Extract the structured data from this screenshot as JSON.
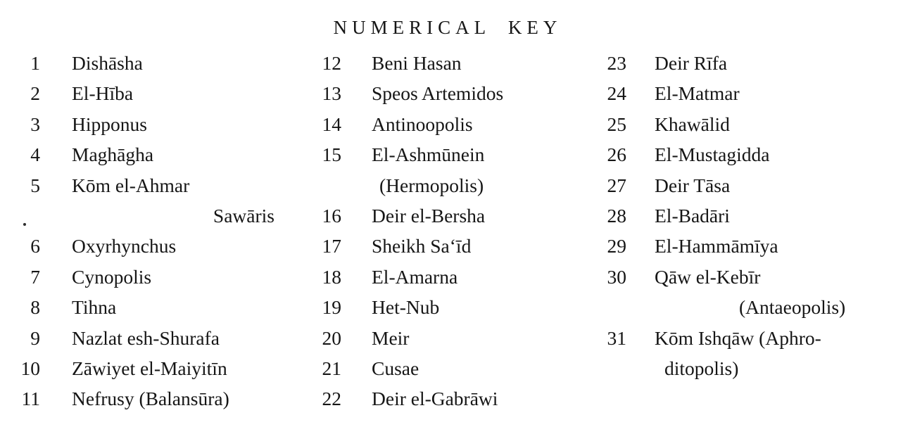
{
  "title": "NUMERICAL KEY",
  "columns": [
    {
      "entries": [
        {
          "num": "1",
          "name": "Dishāsha"
        },
        {
          "num": "2",
          "name": "El-Hība"
        },
        {
          "num": "3",
          "name": "Hipponus"
        },
        {
          "num": "4",
          "name": "Maghāgha"
        },
        {
          "num": "5",
          "name": "Kōm el-Ahmar"
        },
        {
          "num": "",
          "name": "Sawāris",
          "align": "right"
        },
        {
          "num": "6",
          "name": "Oxyrhynchus"
        },
        {
          "num": "7",
          "name": "Cynopolis"
        },
        {
          "num": "8",
          "name": "Tihna"
        },
        {
          "num": "9",
          "name": "Nazlat esh-Shurafa"
        },
        {
          "num": "10",
          "name": "Zāwiyet el-Maiyitīn"
        },
        {
          "num": "11",
          "name": "Nefrusy (Balansūra)"
        }
      ]
    },
    {
      "entries": [
        {
          "num": "12",
          "name": "Beni Hasan"
        },
        {
          "num": "13",
          "name": "Speos Artemidos"
        },
        {
          "num": "14",
          "name": "Antinoopolis"
        },
        {
          "num": "15",
          "name": "El-Ashmūnein"
        },
        {
          "num": "",
          "name": "(Hermopolis)",
          "align": "indent"
        },
        {
          "num": "16",
          "name": "Deir el-Bersha"
        },
        {
          "num": "17",
          "name": "Sheikh Sa‘īd"
        },
        {
          "num": "18",
          "name": "El-Amarna"
        },
        {
          "num": "19",
          "name": "Het-Nub"
        },
        {
          "num": "20",
          "name": "Meir"
        },
        {
          "num": "21",
          "name": "Cusae"
        },
        {
          "num": "22",
          "name": "Deir el-Gabrāwi"
        }
      ]
    },
    {
      "entries": [
        {
          "num": "23",
          "name": "Deir Rīfa"
        },
        {
          "num": "24",
          "name": "El-Matmar"
        },
        {
          "num": "25",
          "name": "Khawālid"
        },
        {
          "num": "26",
          "name": "El-Mustagidda"
        },
        {
          "num": "27",
          "name": "Deir Tāsa"
        },
        {
          "num": "28",
          "name": "El-Badāri"
        },
        {
          "num": "29",
          "name": "El-Hammāmīya"
        },
        {
          "num": "30",
          "name": "Qāw el-Kebīr"
        },
        {
          "num": "",
          "name": "(Antaeopolis)",
          "align": "far"
        },
        {
          "num": "31",
          "name": "Kōm Ishqāw (Aphro-"
        },
        {
          "num": "",
          "name": "ditopolis)",
          "align": "indent"
        }
      ]
    }
  ],
  "ink_color": "#161616",
  "background_color": "#ffffff"
}
